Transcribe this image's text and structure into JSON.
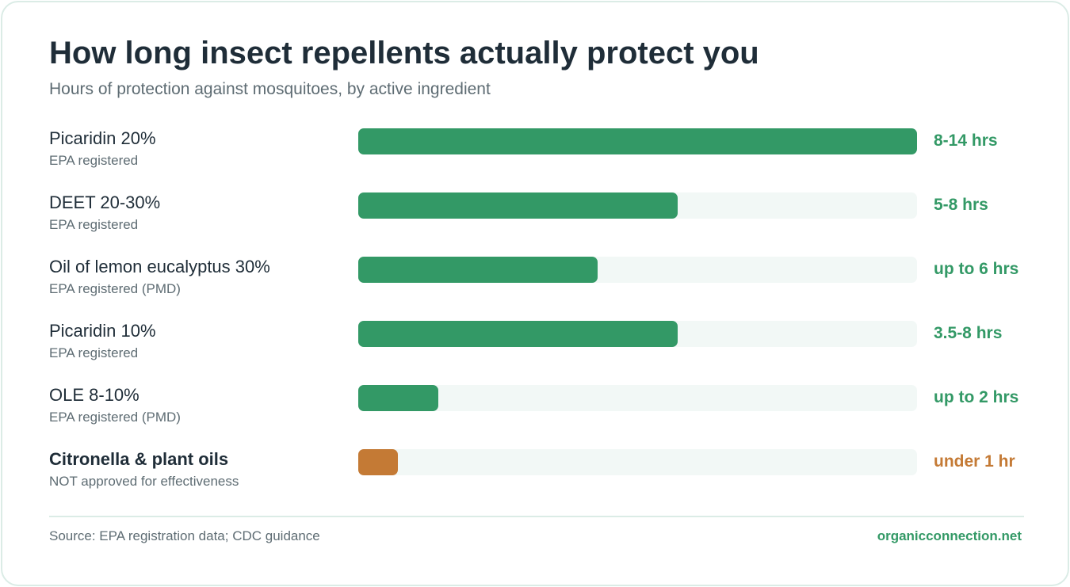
{
  "header": {
    "title": "How long insect repellents actually protect you",
    "subtitle": "Hours of protection against mosquitoes, by active ingredient"
  },
  "colors": {
    "approved": "#339966",
    "not_approved": "#c47a35",
    "track": "#f2f8f6"
  },
  "chart_data": {
    "type": "bar",
    "orientation": "horizontal",
    "title": "How long insect repellents actually protect you",
    "subtitle": "Hours of protection against mosquitoes, by active ingredient",
    "xlim": [
      0,
      14
    ],
    "grid": false,
    "categories": [
      "Picaridin 20%",
      "DEET 20-30%",
      "Oil of lemon eucalyptus 30%",
      "Picaridin 10%",
      "OLE 8-10%",
      "Citronella & plant oils"
    ],
    "values": [
      14,
      8,
      6,
      8,
      2,
      1
    ],
    "rows": [
      {
        "name": "Picaridin 20%",
        "note": "EPA registered",
        "value_label": "8-14 hrs",
        "value": 14,
        "status": "approved"
      },
      {
        "name": "DEET 20-30%",
        "note": "EPA registered",
        "value_label": "5-8 hrs",
        "value": 8,
        "status": "approved"
      },
      {
        "name": "Oil of lemon eucalyptus 30%",
        "note": "EPA registered (PMD)",
        "value_label": "up to 6 hrs",
        "value": 6,
        "status": "approved"
      },
      {
        "name": "Picaridin 10%",
        "note": "EPA registered",
        "value_label": "3.5-8 hrs",
        "value": 8,
        "status": "approved"
      },
      {
        "name": "OLE 8-10%",
        "note": "EPA registered (PMD)",
        "value_label": "up to 2 hrs",
        "value": 2,
        "status": "approved"
      },
      {
        "name": "Citronella & plant oils",
        "note": "NOT approved for effectiveness",
        "value_label": "under 1 hr",
        "value": 1,
        "status": "not_approved"
      }
    ]
  },
  "footer": {
    "source": "Source: EPA registration data; CDC guidance",
    "site": "organicconnection.net"
  }
}
